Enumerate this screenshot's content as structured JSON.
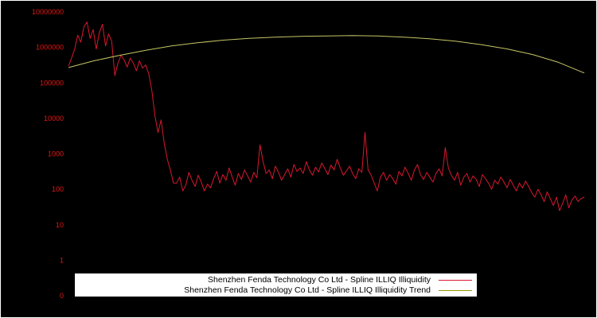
{
  "chart_data": {
    "type": "line",
    "title": "",
    "xlabel": "",
    "ylabel": "",
    "background_color": "#000000",
    "border_color": "#ffffff",
    "axis_label_color": "#e01515",
    "scale": "log",
    "ylog_top": 7,
    "ylog_bottom": -1,
    "grid": false,
    "legend_position": "bottom-center",
    "yticks": [
      {
        "label": "10000000",
        "log": 7
      },
      {
        "label": "1000000",
        "log": 6
      },
      {
        "label": "100000",
        "log": 5
      },
      {
        "label": "10000",
        "log": 4
      },
      {
        "label": "1000",
        "log": 3
      },
      {
        "label": "100",
        "log": 2
      },
      {
        "label": "10",
        "log": 1
      },
      {
        "label": "1",
        "log": 0
      },
      {
        "label": "0",
        "log": -1
      }
    ],
    "series": [
      {
        "name": "Shenzhen Fenda Technology Co Ltd - Spline ILLIQ Illiquidity",
        "color": "#d8182e",
        "legend_color": "#d8182e",
        "width": 1,
        "values": [
          300000,
          500000,
          900000,
          2200000,
          1400000,
          3800000,
          5200000,
          1800000,
          3200000,
          900000,
          2600000,
          4500000,
          1100000,
          2400000,
          1500000,
          160000,
          350000,
          600000,
          450000,
          280000,
          500000,
          360000,
          220000,
          420000,
          260000,
          320000,
          180000,
          60000,
          12000,
          4000,
          9000,
          2000,
          700,
          350,
          150,
          150,
          220,
          90,
          130,
          300,
          180,
          120,
          250,
          160,
          90,
          140,
          110,
          200,
          320,
          150,
          260,
          180,
          400,
          220,
          130,
          280,
          190,
          350,
          240,
          160,
          300,
          210,
          1800,
          600,
          280,
          350,
          200,
          450,
          300,
          180,
          260,
          380,
          220,
          500,
          320,
          400,
          280,
          600,
          350,
          250,
          420,
          310,
          550,
          380,
          260,
          480,
          350,
          700,
          400,
          250,
          330,
          450,
          280,
          200,
          380,
          300,
          4000,
          350,
          250,
          150,
          90,
          220,
          300,
          180,
          260,
          200,
          140,
          320,
          240,
          420,
          280,
          180,
          350,
          500,
          260,
          190,
          300,
          220,
          160,
          280,
          380,
          240,
          1500,
          400,
          250,
          180,
          300,
          130,
          220,
          280,
          160,
          240,
          190,
          120,
          260,
          200,
          150,
          100,
          180,
          140,
          220,
          160,
          110,
          190,
          130,
          90,
          150,
          110,
          170,
          120,
          80,
          60,
          100,
          70,
          45,
          85,
          55,
          35,
          60,
          25,
          40,
          70,
          30,
          50,
          65,
          45,
          55,
          60
        ]
      },
      {
        "name": "Shenzhen Fenda Technology Co Ltd - Spline ILLIQ Illiquidity Trend",
        "color": "#c5c566",
        "legend_color": "#9a9a00",
        "width": 1,
        "values": [
          270000,
          420000,
          600000,
          830000,
          1100000,
          1350000,
          1600000,
          1800000,
          1950000,
          2050000,
          2100000,
          2150000,
          2100000,
          1950000,
          1750000,
          1500000,
          1200000,
          910000,
          630000,
          380000,
          190000
        ]
      }
    ]
  }
}
